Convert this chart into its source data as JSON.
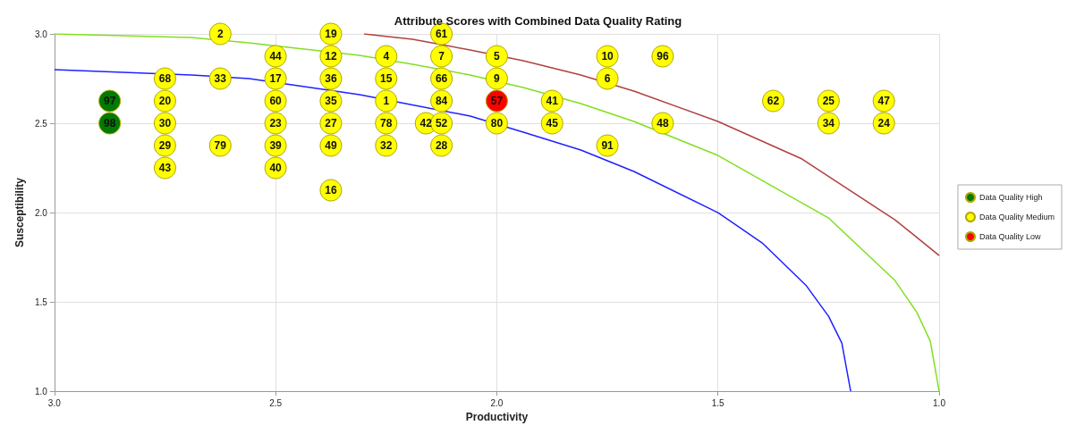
{
  "chart_data": {
    "type": "scatter",
    "title": "Attribute Scores with Combined Data Quality Rating",
    "xlabel": "Productivity",
    "ylabel": "Susceptibility",
    "xlim": [
      3.0,
      1.0
    ],
    "xticks": [
      {
        "value": 3,
        "label": "3.0"
      },
      2.5,
      {
        "value": 2,
        "label": "2.0"
      },
      1.5,
      {
        "value": 1,
        "label": "1.0"
      }
    ],
    "ylim": [
      1.0,
      3.0
    ],
    "yticks": [
      {
        "value": 1,
        "label": "1.0"
      },
      1.5,
      {
        "value": 2,
        "label": "2.0"
      },
      2.5,
      {
        "value": 3,
        "label": "3.0"
      }
    ],
    "grid": true,
    "legend": "right",
    "marker": "circle",
    "series": [
      {
        "type": "line",
        "color": "#2020ff",
        "marker": "none",
        "line_style": "solid",
        "x": [
          3.0,
          2.69,
          2.56,
          2.31,
          2.06,
          1.94,
          1.81,
          1.69,
          1.5,
          1.4,
          1.3,
          1.25,
          1.22,
          1.2
        ],
        "values": [
          2.8,
          2.77,
          2.75,
          2.66,
          2.54,
          2.45,
          2.35,
          2.23,
          2.0,
          1.83,
          1.59,
          1.42,
          1.27,
          1.0
        ]
      },
      {
        "type": "line",
        "color": "#80e020",
        "marker": "none",
        "line_style": "solid",
        "x": [
          3.0,
          2.69,
          2.56,
          2.31,
          2.19,
          2.06,
          1.94,
          1.81,
          1.69,
          1.5,
          1.25,
          1.1,
          1.05,
          1.02,
          1.0
        ],
        "values": [
          3.0,
          2.98,
          2.95,
          2.88,
          2.83,
          2.77,
          2.7,
          2.61,
          2.51,
          2.32,
          1.97,
          1.62,
          1.44,
          1.28,
          1.0
        ]
      },
      {
        "type": "line",
        "color": "#b04040",
        "marker": "none",
        "line_style": "solid",
        "x": [
          2.3,
          2.19,
          2.06,
          1.94,
          1.81,
          1.69,
          1.5,
          1.31,
          1.1,
          1.0
        ],
        "values": [
          3.0,
          2.97,
          2.91,
          2.85,
          2.77,
          2.68,
          2.51,
          2.3,
          1.96,
          1.76
        ]
      },
      {
        "name": "Data Quality High",
        "color": "#007a00",
        "x": [
          2.875,
          2.875
        ],
        "values": [
          2.625,
          2.5
        ]
      },
      {
        "name": "Data Quality Medium",
        "color": "#ffff00",
        "x": [
          2.625,
          2.375,
          2.125,
          2.5,
          2.375,
          2.25,
          2.0,
          1.75,
          1.625,
          2.75,
          2.625,
          2.5,
          2.375,
          2.25,
          2.125,
          2.0,
          1.75,
          2.75,
          2.5,
          2.375,
          2.25,
          2.125,
          1.875,
          1.375,
          1.25,
          1.125,
          2.75,
          2.5,
          2.375,
          2.25,
          2.16,
          2.125,
          2.0,
          1.875,
          1.625,
          1.25,
          1.125,
          2.75,
          2.625,
          2.5,
          2.375,
          2.25,
          2.125,
          1.75,
          2.75,
          2.5,
          2.375,
          2.125
        ],
        "values": [
          3.0,
          3.0,
          3.0,
          2.875,
          2.875,
          2.875,
          2.875,
          2.875,
          2.875,
          2.75,
          2.75,
          2.75,
          2.75,
          2.75,
          2.75,
          2.75,
          2.75,
          2.625,
          2.625,
          2.625,
          2.625,
          2.625,
          2.625,
          2.625,
          2.625,
          2.625,
          2.5,
          2.5,
          2.5,
          2.5,
          2.5,
          2.5,
          2.5,
          2.5,
          2.5,
          2.5,
          2.5,
          2.375,
          2.375,
          2.375,
          2.375,
          2.375,
          2.375,
          2.375,
          2.25,
          2.25,
          2.125,
          2.875
        ]
      },
      {
        "name": "Data Quality Low",
        "color": "#ff0000",
        "x": [
          2.0
        ],
        "values": [
          2.625
        ]
      }
    ],
    "annotations": [
      {
        "text": "97",
        "x": 2.875,
        "y": 2.625
      },
      {
        "text": "98",
        "x": 2.875,
        "y": 2.5
      },
      {
        "text": "2",
        "x": 2.625,
        "y": 3.0
      },
      {
        "text": "19",
        "x": 2.375,
        "y": 3.0
      },
      {
        "text": "61",
        "x": 2.125,
        "y": 3.0
      },
      {
        "text": "44",
        "x": 2.5,
        "y": 2.875
      },
      {
        "text": "12",
        "x": 2.375,
        "y": 2.875
      },
      {
        "text": "4",
        "x": 2.25,
        "y": 2.875
      },
      {
        "text": "5",
        "x": 2.0,
        "y": 2.875
      },
      {
        "text": "10",
        "x": 1.75,
        "y": 2.875
      },
      {
        "text": "96",
        "x": 1.625,
        "y": 2.875
      },
      {
        "text": "68",
        "x": 2.75,
        "y": 2.75
      },
      {
        "text": "33",
        "x": 2.625,
        "y": 2.75
      },
      {
        "text": "17",
        "x": 2.5,
        "y": 2.75
      },
      {
        "text": "36",
        "x": 2.375,
        "y": 2.75
      },
      {
        "text": "15",
        "x": 2.25,
        "y": 2.75
      },
      {
        "text": "66",
        "x": 2.125,
        "y": 2.75
      },
      {
        "text": "9",
        "x": 2.0,
        "y": 2.75
      },
      {
        "text": "6",
        "x": 1.75,
        "y": 2.75
      },
      {
        "text": "20",
        "x": 2.75,
        "y": 2.625
      },
      {
        "text": "60",
        "x": 2.5,
        "y": 2.625
      },
      {
        "text": "35",
        "x": 2.375,
        "y": 2.625
      },
      {
        "text": "1",
        "x": 2.25,
        "y": 2.625
      },
      {
        "text": "84",
        "x": 2.125,
        "y": 2.625
      },
      {
        "text": "41",
        "x": 1.875,
        "y": 2.625
      },
      {
        "text": "62",
        "x": 1.375,
        "y": 2.625
      },
      {
        "text": "25",
        "x": 1.25,
        "y": 2.625
      },
      {
        "text": "47",
        "x": 1.125,
        "y": 2.625
      },
      {
        "text": "30",
        "x": 2.75,
        "y": 2.5
      },
      {
        "text": "23",
        "x": 2.5,
        "y": 2.5
      },
      {
        "text": "27",
        "x": 2.375,
        "y": 2.5
      },
      {
        "text": "78",
        "x": 2.25,
        "y": 2.5
      },
      {
        "text": "42",
        "x": 2.16,
        "y": 2.5
      },
      {
        "text": "52",
        "x": 2.125,
        "y": 2.5
      },
      {
        "text": "80",
        "x": 2.0,
        "y": 2.5
      },
      {
        "text": "45",
        "x": 1.875,
        "y": 2.5
      },
      {
        "text": "48",
        "x": 1.625,
        "y": 2.5
      },
      {
        "text": "34",
        "x": 1.25,
        "y": 2.5
      },
      {
        "text": "24",
        "x": 1.125,
        "y": 2.5
      },
      {
        "text": "29",
        "x": 2.75,
        "y": 2.375
      },
      {
        "text": "79",
        "x": 2.625,
        "y": 2.375
      },
      {
        "text": "39",
        "x": 2.5,
        "y": 2.375
      },
      {
        "text": "49",
        "x": 2.375,
        "y": 2.375
      },
      {
        "text": "32",
        "x": 2.25,
        "y": 2.375
      },
      {
        "text": "28",
        "x": 2.125,
        "y": 2.375
      },
      {
        "text": "91",
        "x": 1.75,
        "y": 2.375
      },
      {
        "text": "43",
        "x": 2.75,
        "y": 2.25
      },
      {
        "text": "40",
        "x": 2.5,
        "y": 2.25
      },
      {
        "text": "16",
        "x": 2.375,
        "y": 2.125
      },
      {
        "text": "7",
        "x": 2.125,
        "y": 2.875
      },
      {
        "text": "57",
        "x": 2.0,
        "y": 2.625
      }
    ]
  }
}
